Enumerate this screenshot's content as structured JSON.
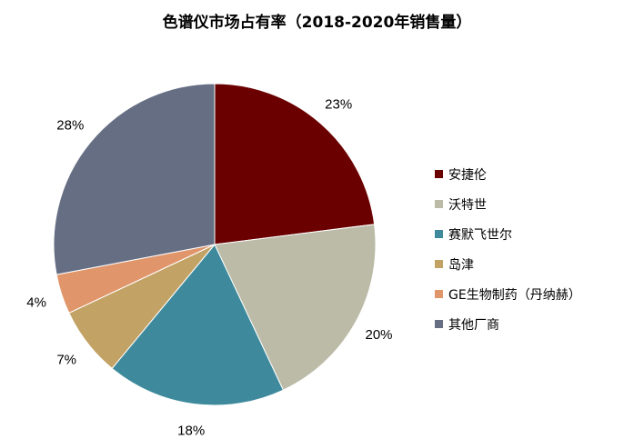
{
  "chart_data": {
    "type": "pie",
    "title": "色谱仪市场占有率（2018-2020年销售量）",
    "categories": [
      "安捷伦",
      "沃特世",
      "赛默飞世尔",
      "岛津",
      "GE生物制药（丹纳赫）",
      "其他厂商"
    ],
    "values": [
      23,
      20,
      18,
      7,
      4,
      28
    ],
    "labels": [
      "23%",
      "20%",
      "18%",
      "7%",
      "4%",
      "28%"
    ],
    "colors": [
      "#6B0000",
      "#BBBBA8",
      "#3E8A9C",
      "#C3A265",
      "#E0956A",
      "#666E84"
    ],
    "legend_position": "right",
    "start": "top",
    "direction": "clockwise"
  }
}
